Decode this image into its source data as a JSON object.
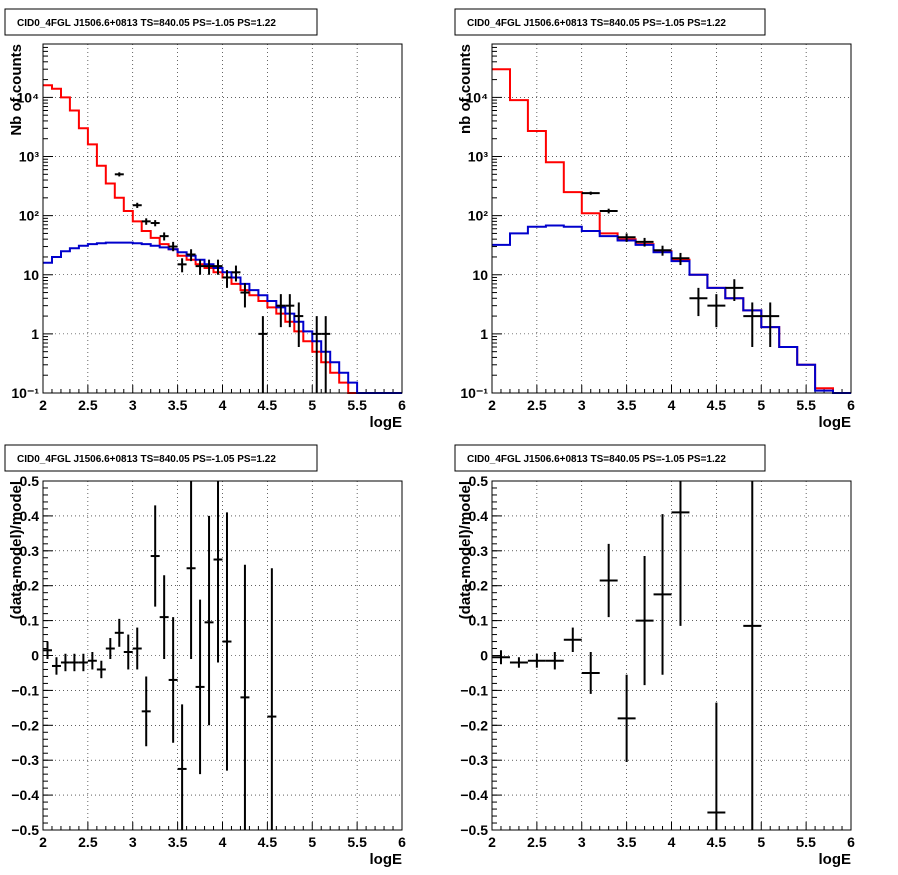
{
  "chart_data": [
    {
      "type": "line",
      "title": "CID0_4FGL J1506.6+0813 TS=840.05 PS=-1.05 PS=1.22",
      "xlabel": "logE",
      "ylabel": "Nb of counts",
      "xlim": [
        2,
        6
      ],
      "ylim": [
        0.1,
        80000
      ],
      "yscale": "log",
      "grid": true,
      "xticks": [
        "2",
        "2.5",
        "3",
        "3.5",
        "4",
        "4.5",
        "5",
        "5.5",
        "6"
      ],
      "yticks": [
        {
          "value": 0.1,
          "label": "10⁻¹"
        },
        {
          "value": 1,
          "label": "1"
        },
        {
          "value": 10,
          "label": "10"
        },
        {
          "value": 100,
          "label": "10²"
        },
        {
          "value": 1000,
          "label": "10³"
        },
        {
          "value": 10000,
          "label": "10⁴"
        }
      ],
      "bin_edges": [
        2.0,
        2.1,
        2.2,
        2.3,
        2.4,
        2.5,
        2.6,
        2.7,
        2.8,
        2.9,
        3.0,
        3.1,
        3.2,
        3.3,
        3.4,
        3.5,
        3.6,
        3.7,
        3.8,
        3.9,
        4.0,
        4.1,
        4.2,
        4.3,
        4.4,
        4.5,
        4.6,
        4.7,
        4.8,
        4.9,
        5.0,
        5.1,
        5.2,
        5.3,
        5.4,
        5.5,
        5.6,
        5.7,
        5.8,
        5.9,
        6.0
      ],
      "series": [
        {
          "name": "",
          "color": "#ff0000",
          "style": "step",
          "values": [
            16000,
            14000,
            10000,
            6000,
            3000,
            1600,
            700,
            350,
            200,
            120,
            80,
            55,
            42,
            33,
            27,
            21,
            18,
            15,
            13,
            11,
            9,
            7,
            5.5,
            4.5,
            3.6,
            2.8,
            2.2,
            1.6,
            1.1,
            0.75,
            0.5,
            0.33,
            0.22,
            0.15,
            0.1,
            0.1,
            0.1,
            0.1,
            0.1,
            0.1
          ]
        },
        {
          "name": "",
          "color": "#0000cc",
          "style": "step",
          "values": [
            16,
            20,
            25,
            28,
            31,
            33,
            34,
            35,
            35,
            35,
            34,
            33,
            31,
            29,
            27,
            24,
            21,
            18,
            15,
            13,
            11,
            9,
            7,
            5.5,
            4.5,
            3.6,
            2.8,
            2.2,
            1.6,
            1.1,
            0.75,
            0.5,
            0.33,
            0.22,
            0.15,
            0.1,
            0.1,
            0.1,
            0.1,
            0.1
          ]
        },
        {
          "name": "",
          "color": "#000000",
          "style": "errorbar",
          "points": [
            {
              "x": 2.85,
              "y": 500,
              "xerr": 0.05,
              "lo": 460,
              "hi": 540
            },
            {
              "x": 3.05,
              "y": 150,
              "xerr": 0.05,
              "lo": 135,
              "hi": 165
            },
            {
              "x": 3.15,
              "y": 80,
              "xerr": 0.05,
              "lo": 70,
              "hi": 90
            },
            {
              "x": 3.25,
              "y": 75,
              "xerr": 0.05,
              "lo": 66,
              "hi": 84
            },
            {
              "x": 3.35,
              "y": 45,
              "xerr": 0.05,
              "lo": 38,
              "hi": 52
            },
            {
              "x": 3.45,
              "y": 30,
              "xerr": 0.05,
              "lo": 25,
              "hi": 36
            },
            {
              "x": 3.55,
              "y": 15,
              "xerr": 0.05,
              "lo": 11,
              "hi": 19
            },
            {
              "x": 3.65,
              "y": 22,
              "xerr": 0.05,
              "lo": 17,
              "hi": 27
            },
            {
              "x": 3.75,
              "y": 14,
              "xerr": 0.05,
              "lo": 10,
              "hi": 18
            },
            {
              "x": 3.85,
              "y": 14,
              "xerr": 0.05,
              "lo": 10,
              "hi": 18
            },
            {
              "x": 3.95,
              "y": 14,
              "xerr": 0.05,
              "lo": 10,
              "hi": 18
            },
            {
              "x": 4.05,
              "y": 9,
              "xerr": 0.05,
              "lo": 6,
              "hi": 12
            },
            {
              "x": 4.15,
              "y": 11,
              "xerr": 0.05,
              "lo": 7.7,
              "hi": 14.3
            },
            {
              "x": 4.25,
              "y": 5,
              "xerr": 0.05,
              "lo": 2.8,
              "hi": 7.2
            },
            {
              "x": 4.45,
              "y": 1,
              "xerr": 0.05,
              "lo": 0.1,
              "hi": 2.0
            },
            {
              "x": 4.65,
              "y": 3,
              "xerr": 0.05,
              "lo": 1.3,
              "hi": 4.7
            },
            {
              "x": 4.75,
              "y": 3,
              "xerr": 0.05,
              "lo": 1.3,
              "hi": 4.7
            },
            {
              "x": 4.85,
              "y": 2,
              "xerr": 0.05,
              "lo": 0.6,
              "hi": 3.4
            },
            {
              "x": 5.05,
              "y": 1,
              "xerr": 0.05,
              "lo": 0.1,
              "hi": 2.0
            },
            {
              "x": 5.15,
              "y": 1,
              "xerr": 0.05,
              "lo": 0.1,
              "hi": 2.0
            }
          ]
        }
      ]
    },
    {
      "type": "line",
      "title": "CID0_4FGL J1506.6+0813 TS=840.05 PS=-1.05 PS=1.22",
      "xlabel": "logE",
      "ylabel": "nb of counts",
      "xlim": [
        2,
        6
      ],
      "ylim": [
        0.1,
        80000
      ],
      "yscale": "log",
      "grid": true,
      "xticks": [
        "2",
        "2.5",
        "3",
        "3.5",
        "4",
        "4.5",
        "5",
        "5.5",
        "6"
      ],
      "yticks": [
        {
          "value": 0.1,
          "label": "10⁻¹"
        },
        {
          "value": 1,
          "label": "1"
        },
        {
          "value": 10,
          "label": "10"
        },
        {
          "value": 100,
          "label": "10²"
        },
        {
          "value": 1000,
          "label": "10³"
        },
        {
          "value": 10000,
          "label": "10⁴"
        }
      ],
      "bin_edges": [
        2.0,
        2.2,
        2.4,
        2.6,
        2.8,
        3.0,
        3.2,
        3.4,
        3.6,
        3.8,
        4.0,
        4.2,
        4.4,
        4.6,
        4.8,
        5.0,
        5.2,
        5.4,
        5.6,
        5.8,
        6.0
      ],
      "series": [
        {
          "name": "",
          "color": "#ff0000",
          "style": "step",
          "values": [
            30000,
            9000,
            2700,
            800,
            250,
            110,
            50,
            40,
            33,
            25,
            18,
            10,
            6,
            4,
            2.5,
            1.3,
            0.6,
            0.3,
            0.12,
            0.1
          ]
        },
        {
          "name": "",
          "color": "#0000cc",
          "style": "step",
          "values": [
            32,
            50,
            65,
            68,
            65,
            55,
            45,
            38,
            32,
            24,
            17,
            10,
            6,
            4,
            2.5,
            1.3,
            0.6,
            0.3,
            0.11,
            0.1
          ]
        },
        {
          "name": "",
          "color": "#000000",
          "style": "errorbar",
          "points": [
            {
              "x": 3.1,
              "y": 240,
              "xerr": 0.1,
              "lo": 225,
              "hi": 255
            },
            {
              "x": 3.3,
              "y": 120,
              "xerr": 0.1,
              "lo": 109,
              "hi": 131
            },
            {
              "x": 3.5,
              "y": 43,
              "xerr": 0.1,
              "lo": 36,
              "hi": 50
            },
            {
              "x": 3.7,
              "y": 36,
              "xerr": 0.1,
              "lo": 30,
              "hi": 42
            },
            {
              "x": 3.9,
              "y": 26,
              "xerr": 0.1,
              "lo": 21,
              "hi": 31
            },
            {
              "x": 4.1,
              "y": 19,
              "xerr": 0.1,
              "lo": 14.6,
              "hi": 23.4
            },
            {
              "x": 4.3,
              "y": 4,
              "xerr": 0.1,
              "lo": 2.0,
              "hi": 6.0
            },
            {
              "x": 4.5,
              "y": 3,
              "xerr": 0.1,
              "lo": 1.3,
              "hi": 4.7
            },
            {
              "x": 4.7,
              "y": 6,
              "xerr": 0.1,
              "lo": 3.6,
              "hi": 8.4
            },
            {
              "x": 4.9,
              "y": 2,
              "xerr": 0.1,
              "lo": 0.6,
              "hi": 3.4
            },
            {
              "x": 5.1,
              "y": 2,
              "xerr": 0.1,
              "lo": 0.6,
              "hi": 3.4
            }
          ]
        }
      ]
    },
    {
      "type": "scatter",
      "title": "CID0_4FGL J1506.6+0813 TS=840.05 PS=-1.05 PS=1.22",
      "xlabel": "logE",
      "ylabel": "(data-model)/model",
      "xlim": [
        2,
        6
      ],
      "ylim": [
        -0.5,
        0.5
      ],
      "yscale": "linear",
      "grid": true,
      "xticks": [
        "2",
        "2.5",
        "3",
        "3.5",
        "4",
        "4.5",
        "5",
        "5.5",
        "6"
      ],
      "yticks": [
        {
          "value": -0.5,
          "label": "−0.5"
        },
        {
          "value": -0.4,
          "label": "−0.4"
        },
        {
          "value": -0.3,
          "label": "−0.3"
        },
        {
          "value": -0.2,
          "label": "−0.2"
        },
        {
          "value": -0.1,
          "label": "−0.1"
        },
        {
          "value": 0,
          "label": "0"
        },
        {
          "value": 0.1,
          "label": "0.1"
        },
        {
          "value": 0.2,
          "label": "0.2"
        },
        {
          "value": 0.3,
          "label": "0.3"
        },
        {
          "value": 0.4,
          "label": "0.4"
        },
        {
          "value": 0.5,
          "label": "0.5"
        }
      ],
      "series": [
        {
          "name": "",
          "color": "#000000",
          "style": "errorbar",
          "points": [
            {
              "x": 2.05,
              "y": 0.015,
              "xerr": 0.05,
              "lo": -0.01,
              "hi": 0.04
            },
            {
              "x": 2.15,
              "y": -0.03,
              "xerr": 0.05,
              "lo": -0.055,
              "hi": -0.005
            },
            {
              "x": 2.25,
              "y": -0.02,
              "xerr": 0.05,
              "lo": -0.045,
              "hi": 0.005
            },
            {
              "x": 2.35,
              "y": -0.02,
              "xerr": 0.05,
              "lo": -0.045,
              "hi": 0.005
            },
            {
              "x": 2.45,
              "y": -0.02,
              "xerr": 0.05,
              "lo": -0.045,
              "hi": 0.005
            },
            {
              "x": 2.55,
              "y": -0.015,
              "xerr": 0.05,
              "lo": -0.04,
              "hi": 0.01
            },
            {
              "x": 2.65,
              "y": -0.04,
              "xerr": 0.05,
              "lo": -0.065,
              "hi": -0.015
            },
            {
              "x": 2.75,
              "y": 0.02,
              "xerr": 0.05,
              "lo": -0.01,
              "hi": 0.05
            },
            {
              "x": 2.85,
              "y": 0.065,
              "xerr": 0.05,
              "lo": 0.025,
              "hi": 0.105
            },
            {
              "x": 2.95,
              "y": 0.01,
              "xerr": 0.05,
              "lo": -0.04,
              "hi": 0.06
            },
            {
              "x": 3.05,
              "y": 0.02,
              "xerr": 0.05,
              "lo": -0.04,
              "hi": 0.08
            },
            {
              "x": 3.15,
              "y": -0.16,
              "xerr": 0.05,
              "lo": -0.26,
              "hi": -0.06
            },
            {
              "x": 3.25,
              "y": 0.285,
              "xerr": 0.05,
              "lo": 0.14,
              "hi": 0.43
            },
            {
              "x": 3.35,
              "y": 0.11,
              "xerr": 0.05,
              "lo": -0.01,
              "hi": 0.23
            },
            {
              "x": 3.45,
              "y": -0.07,
              "xerr": 0.05,
              "lo": -0.25,
              "hi": 0.11
            },
            {
              "x": 3.55,
              "y": -0.325,
              "xerr": 0.05,
              "lo": -0.5,
              "hi": -0.14
            },
            {
              "x": 3.65,
              "y": 0.25,
              "xerr": 0.05,
              "lo": -0.01,
              "hi": 0.5
            },
            {
              "x": 3.75,
              "y": -0.09,
              "xerr": 0.05,
              "lo": -0.34,
              "hi": 0.16
            },
            {
              "x": 3.85,
              "y": 0.095,
              "xerr": 0.05,
              "lo": -0.2,
              "hi": 0.4
            },
            {
              "x": 3.95,
              "y": 0.275,
              "xerr": 0.05,
              "lo": -0.02,
              "hi": 0.5
            },
            {
              "x": 4.05,
              "y": 0.04,
              "xerr": 0.05,
              "lo": -0.33,
              "hi": 0.41
            },
            {
              "x": 4.25,
              "y": -0.12,
              "xerr": 0.05,
              "lo": -0.5,
              "hi": 0.26
            },
            {
              "x": 4.55,
              "y": -0.175,
              "xerr": 0.05,
              "lo": -0.5,
              "hi": 0.25
            }
          ]
        }
      ]
    },
    {
      "type": "scatter",
      "title": "CID0_4FGL J1506.6+0813 TS=840.05 PS=-1.05 PS=1.22",
      "xlabel": "logE",
      "ylabel": "(data-model)/model",
      "xlim": [
        2,
        6
      ],
      "ylim": [
        -0.5,
        0.5
      ],
      "yscale": "linear",
      "grid": true,
      "xticks": [
        "2",
        "2.5",
        "3",
        "3.5",
        "4",
        "4.5",
        "5",
        "5.5",
        "6"
      ],
      "yticks": [
        {
          "value": -0.5,
          "label": "−0.5"
        },
        {
          "value": -0.4,
          "label": "−0.4"
        },
        {
          "value": -0.3,
          "label": "−0.3"
        },
        {
          "value": -0.2,
          "label": "−0.2"
        },
        {
          "value": -0.1,
          "label": "−0.1"
        },
        {
          "value": 0,
          "label": "0"
        },
        {
          "value": 0.1,
          "label": "0.1"
        },
        {
          "value": 0.2,
          "label": "0.2"
        },
        {
          "value": 0.3,
          "label": "0.3"
        },
        {
          "value": 0.4,
          "label": "0.4"
        },
        {
          "value": 0.5,
          "label": "0.5"
        }
      ],
      "series": [
        {
          "name": "",
          "color": "#000000",
          "style": "errorbar",
          "points": [
            {
              "x": 2.1,
              "y": -0.005,
              "xerr": 0.1,
              "lo": -0.025,
              "hi": 0.015
            },
            {
              "x": 2.3,
              "y": -0.02,
              "xerr": 0.1,
              "lo": -0.035,
              "hi": -0.005
            },
            {
              "x": 2.5,
              "y": -0.015,
              "xerr": 0.1,
              "lo": -0.035,
              "hi": 0.005
            },
            {
              "x": 2.7,
              "y": -0.015,
              "xerr": 0.1,
              "lo": -0.04,
              "hi": 0.01
            },
            {
              "x": 2.9,
              "y": 0.045,
              "xerr": 0.1,
              "lo": 0.01,
              "hi": 0.08
            },
            {
              "x": 3.1,
              "y": -0.05,
              "xerr": 0.1,
              "lo": -0.11,
              "hi": 0.01
            },
            {
              "x": 3.3,
              "y": 0.215,
              "xerr": 0.1,
              "lo": 0.11,
              "hi": 0.32
            },
            {
              "x": 3.5,
              "y": -0.18,
              "xerr": 0.1,
              "lo": -0.305,
              "hi": -0.055
            },
            {
              "x": 3.7,
              "y": 0.1,
              "xerr": 0.1,
              "lo": -0.085,
              "hi": 0.285
            },
            {
              "x": 3.9,
              "y": 0.175,
              "xerr": 0.1,
              "lo": -0.055,
              "hi": 0.405
            },
            {
              "x": 4.1,
              "y": 0.41,
              "xerr": 0.1,
              "lo": 0.085,
              "hi": 0.5
            },
            {
              "x": 4.5,
              "y": -0.45,
              "xerr": 0.1,
              "lo": -0.5,
              "hi": -0.135
            },
            {
              "x": 4.9,
              "y": 0.085,
              "xerr": 0.1,
              "lo": -0.5,
              "hi": 0.5
            }
          ]
        }
      ]
    }
  ]
}
